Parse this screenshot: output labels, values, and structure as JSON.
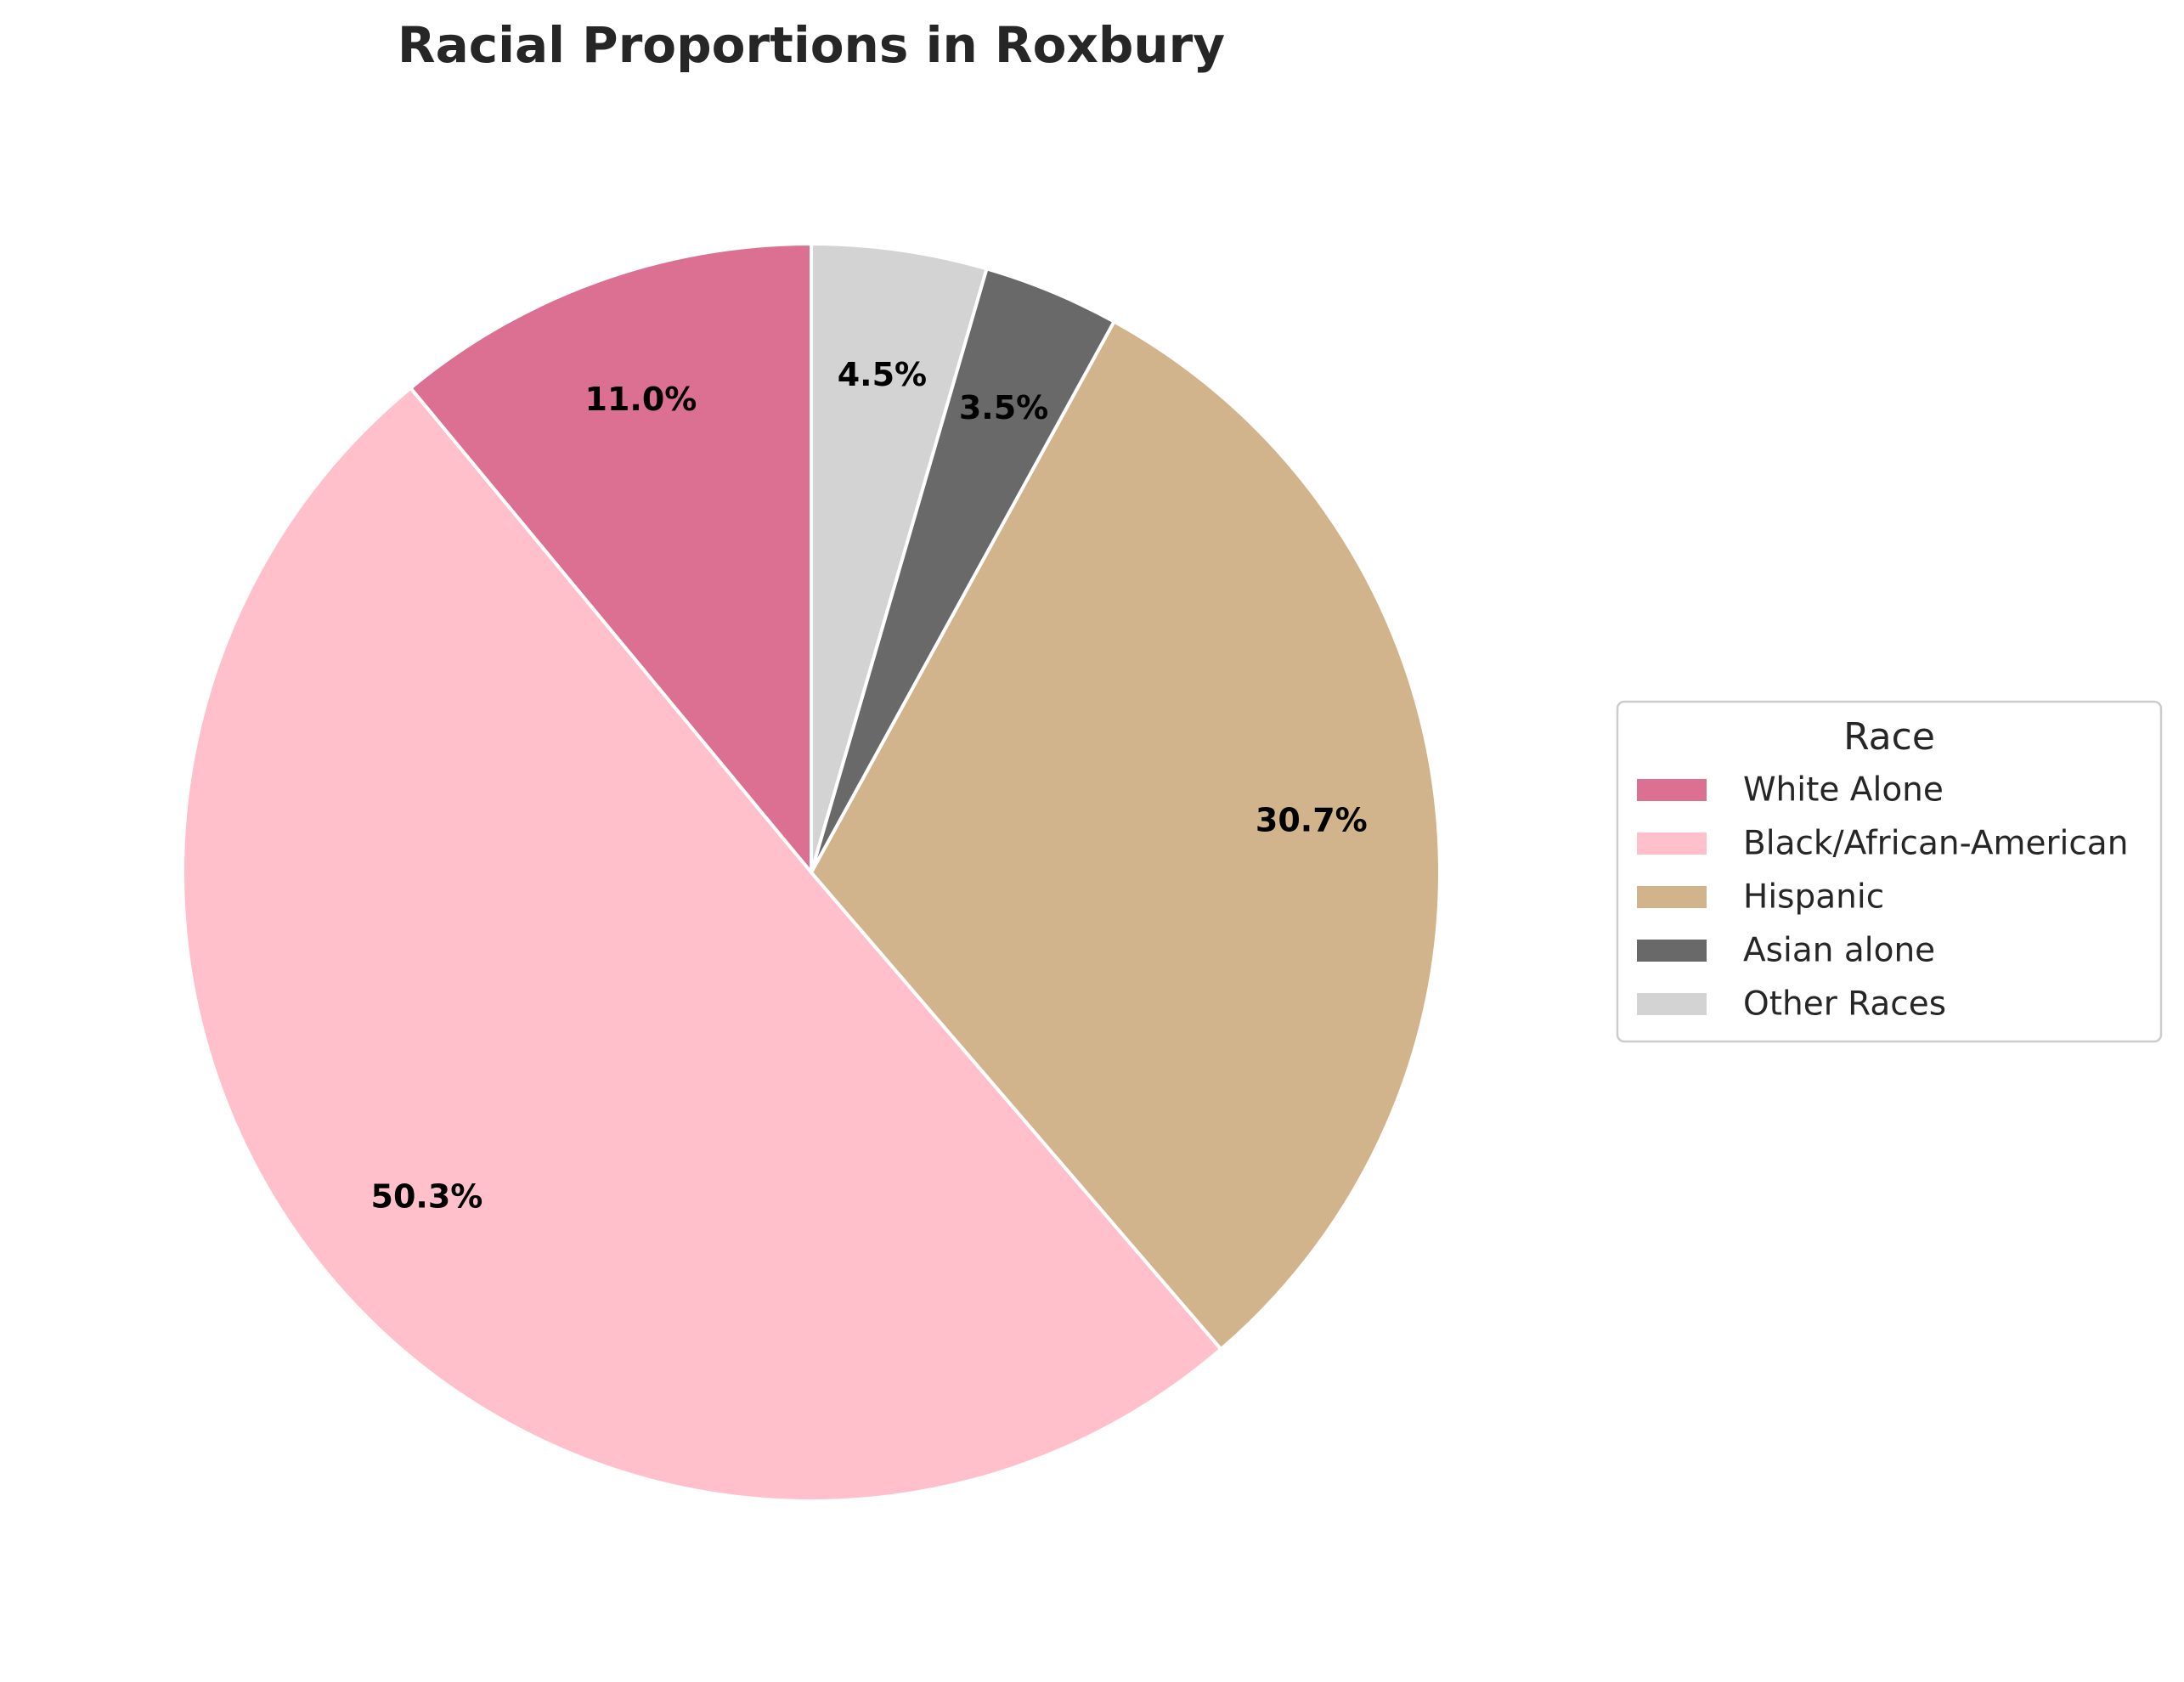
{
  "chart_data": {
    "type": "pie",
    "title": "Racial Proportions in Roxbury",
    "start_angle_deg": 90,
    "direction": "counterclockwise",
    "legend": {
      "title": "Race",
      "placement": "center-right"
    },
    "slices": [
      {
        "label": "White Alone",
        "value": 11.0,
        "pct_label": "11.0%",
        "color": "#DB7093"
      },
      {
        "label": "Black/African-American",
        "value": 50.3,
        "pct_label": "50.3%",
        "color": "#FFC0CB"
      },
      {
        "label": "Hispanic",
        "value": 30.7,
        "pct_label": "30.7%",
        "color": "#D2B48C"
      },
      {
        "label": "Asian alone",
        "value": 3.5,
        "pct_label": "3.5%",
        "color": "#696969"
      },
      {
        "label": "Other Races",
        "value": 4.5,
        "pct_label": "4.5%",
        "color": "#D3D3D3"
      }
    ]
  }
}
